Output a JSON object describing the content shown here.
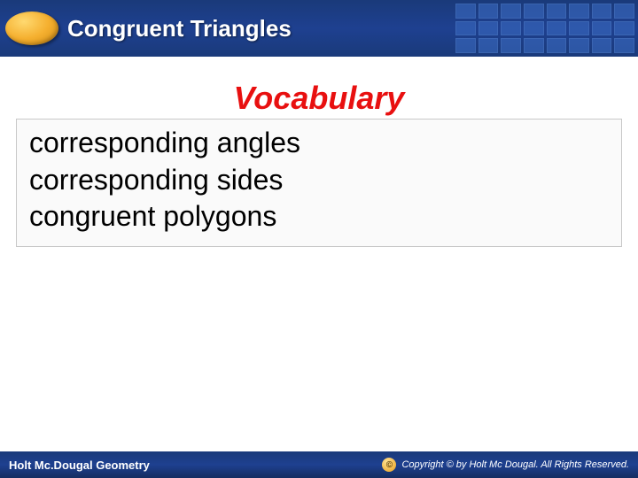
{
  "header": {
    "title": "Congruent Triangles",
    "background_gradient": [
      "#1a3a7a",
      "#1e4090",
      "#1a3a7a"
    ],
    "badge_colors": [
      "#ffd970",
      "#f5b030",
      "#d08a10"
    ]
  },
  "content": {
    "heading": "Vocabulary",
    "heading_color": "#e81010",
    "heading_fontsize": 36,
    "terms": [
      "corresponding angles",
      "corresponding sides",
      "congruent polygons"
    ],
    "term_fontsize": 32,
    "term_color": "#000000",
    "box_border": "#c8c8c8",
    "box_bg": "#fafafa"
  },
  "footer": {
    "left_text": "Holt Mc.Dougal Geometry",
    "right_text": "Copyright © by Holt Mc Dougal. All Rights Reserved.",
    "copyright_symbol": "©",
    "background_gradient": [
      "#1a3a7a",
      "#1e4090",
      "#152d60"
    ],
    "text_color": "#ffffff"
  }
}
